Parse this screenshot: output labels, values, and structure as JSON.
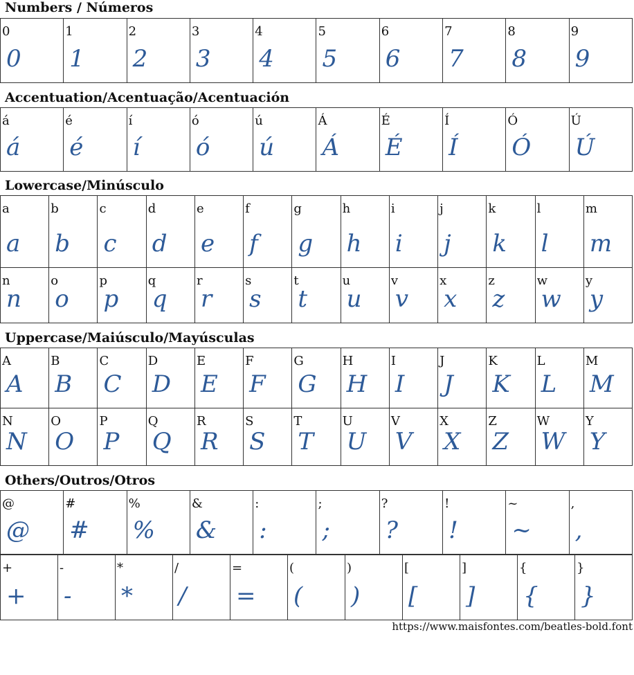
{
  "glyph_color": "#2d5a98",
  "sections": [
    {
      "title": "Numbers / Números",
      "rows": [
        [
          "0",
          "1",
          "2",
          "3",
          "4",
          "5",
          "6",
          "7",
          "8",
          "9"
        ]
      ]
    },
    {
      "title": "Accentuation/Acentuação/Acentuación",
      "rows": [
        [
          "á",
          "é",
          "í",
          "ó",
          "ú",
          "Á",
          "É",
          "Í",
          "Ó",
          "Ú"
        ]
      ]
    },
    {
      "title": "Lowercase/Minúsculo",
      "rows": [
        [
          "a",
          "b",
          "c",
          "d",
          "e",
          "f",
          "g",
          "h",
          "i",
          "j",
          "k",
          "l",
          "m"
        ],
        [
          "n",
          "o",
          "p",
          "q",
          "r",
          "s",
          "t",
          "u",
          "v",
          "x",
          "z",
          "w",
          "y"
        ]
      ]
    },
    {
      "title": "Uppercase/Maiúsculo/Mayúsculas",
      "rows": [
        [
          "A",
          "B",
          "C",
          "D",
          "E",
          "F",
          "G",
          "H",
          "I",
          "J",
          "K",
          "L",
          "M"
        ],
        [
          "N",
          "O",
          "P",
          "Q",
          "R",
          "S",
          "T",
          "U",
          "V",
          "X",
          "Z",
          "W",
          "Y"
        ]
      ]
    },
    {
      "title": "Others/Outros/Otros",
      "rows": [
        [
          "@",
          "#",
          "%",
          "&",
          ":",
          ";",
          "?",
          "!",
          "~",
          ","
        ],
        [
          "+",
          "-",
          "*",
          "/",
          "=",
          "(",
          ")",
          "[",
          "]",
          "{",
          "}"
        ]
      ]
    }
  ],
  "footer_url": "https://www.maisfontes.com/beatles-bold.font"
}
